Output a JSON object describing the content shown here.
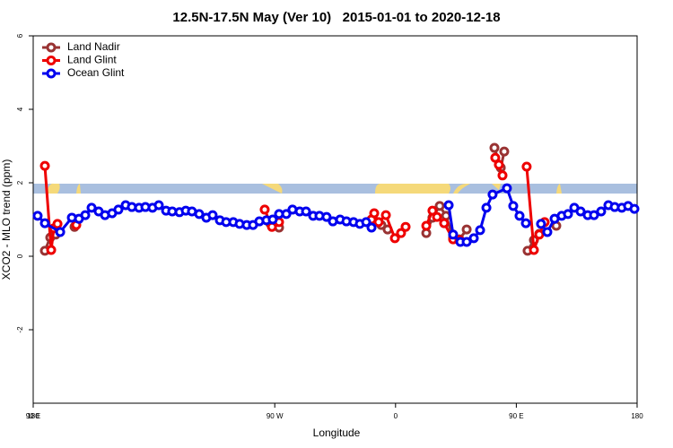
{
  "chart_data": {
    "type": "line",
    "title": "12.5N-17.5N May (Ver 10)   2015-01-01 to 2020-12-18",
    "x_label": "Longitude",
    "y_label": "XCO2 - MLO trend (ppm)",
    "xlim": [
      90,
      540
    ],
    "xticks": [
      {
        "value": 90,
        "label": "90 E"
      },
      180,
      {
        "value": 270,
        "label": "90 W"
      },
      {
        "value": 360,
        "label": "0"
      },
      {
        "value": 450,
        "label": "90 E"
      },
      180
    ],
    "ylim": [
      -4,
      6
    ],
    "yticks": [
      -2,
      0,
      2,
      4,
      6
    ],
    "legend": "top-left",
    "series": [
      {
        "name": "Land Nadir",
        "color": "#993333",
        "x": [
          98.7,
          102.7,
          106.7,
          null,
          120.8,
          null,
          266.5,
          273.2,
          null,
          349.4,
          354.1,
          null,
          382.9,
          387.5,
          392.9,
          397.6,
          402.9,
          407.6,
          413.0,
          null,
          433.7,
          438.4,
          441.0,
          null,
          458.4,
          463.1,
          467.1,
          null,
          479.8
        ],
        "values": [
          0.15,
          0.51,
          0.59,
          null,
          0.8,
          null,
          0.9,
          0.78,
          null,
          0.85,
          0.73,
          null,
          0.63,
          1.05,
          1.37,
          1.1,
          0.51,
          0.46,
          0.73,
          null,
          2.95,
          2.41,
          2.85,
          null,
          0.15,
          0.44,
          0.61,
          null,
          0.83
        ]
      },
      {
        "name": "Land Glint",
        "color": "#ee0000",
        "x": [
          98.7,
          103.4,
          105.4,
          108.1,
          null,
          122.1,
          null,
          262.5,
          267.9,
          273.2,
          null,
          342.1,
          344.1,
          347.4,
          352.8,
          359.5,
          364.1,
          367.5,
          null,
          382.9,
          387.5,
          390.9,
          396.2,
          402.9,
          407.6,
          null,
          434.3,
          437.0,
          439.7,
          null,
          457.7,
          463.1,
          467.1,
          471.1
        ],
        "values": [
          2.46,
          0.17,
          0.76,
          0.88,
          null,
          0.85,
          null,
          1.27,
          0.8,
          0.93,
          null,
          1.0,
          1.17,
          0.93,
          1.12,
          0.49,
          0.63,
          0.8,
          null,
          0.83,
          1.24,
          1.07,
          0.9,
          0.46,
          0.44,
          null,
          2.68,
          2.49,
          2.2,
          null,
          2.44,
          0.17,
          0.59,
          0.93
        ]
      },
      {
        "name": "Ocean Glint",
        "color": "#0000ee",
        "x": [
          93.3,
          98.7,
          110.1,
          118.8,
          124.1,
          128.8,
          133.5,
          138.8,
          143.5,
          148.8,
          153.5,
          158.9,
          163.5,
          168.9,
          173.6,
          178.9,
          183.6,
          189.0,
          193.6,
          199.0,
          203.7,
          208.3,
          213.7,
          219.0,
          223.7,
          229.1,
          233.8,
          239.1,
          243.8,
          249.1,
          253.8,
          258.5,
          263.8,
          268.5,
          273.2,
          278.6,
          283.2,
          288.6,
          293.3,
          298.6,
          303.3,
          308.6,
          313.3,
          318.7,
          323.4,
          328.7,
          333.4,
          338.1,
          342.1,
          null,
          399.6,
          402.9,
          408.3,
          413.0,
          418.3,
          423.0,
          427.7,
          432.3,
          443.0,
          447.7,
          452.4,
          457.1,
          null,
          468.4,
          473.1,
          478.5,
          483.8,
          488.5,
          493.2,
          497.9,
          503.2,
          507.9,
          513.2,
          518.6,
          523.3,
          528.6,
          533.3,
          538.0
        ],
        "values": [
          1.1,
          0.9,
          0.66,
          1.05,
          1.02,
          1.12,
          1.32,
          1.22,
          1.12,
          1.17,
          1.27,
          1.39,
          1.34,
          1.32,
          1.34,
          1.32,
          1.39,
          1.24,
          1.22,
          1.2,
          1.24,
          1.22,
          1.15,
          1.05,
          1.12,
          0.98,
          0.93,
          0.93,
          0.88,
          0.85,
          0.85,
          0.95,
          0.98,
          1.0,
          1.15,
          1.15,
          1.27,
          1.22,
          1.22,
          1.1,
          1.1,
          1.07,
          0.95,
          1.0,
          0.95,
          0.93,
          0.88,
          0.93,
          0.78,
          null,
          1.39,
          0.59,
          0.39,
          0.39,
          0.49,
          0.71,
          1.32,
          1.68,
          1.85,
          1.37,
          1.1,
          0.9,
          null,
          0.88,
          0.66,
          1.02,
          1.1,
          1.15,
          1.32,
          1.22,
          1.12,
          1.12,
          1.22,
          1.39,
          1.34,
          1.32,
          1.37,
          1.29
        ]
      }
    ]
  }
}
